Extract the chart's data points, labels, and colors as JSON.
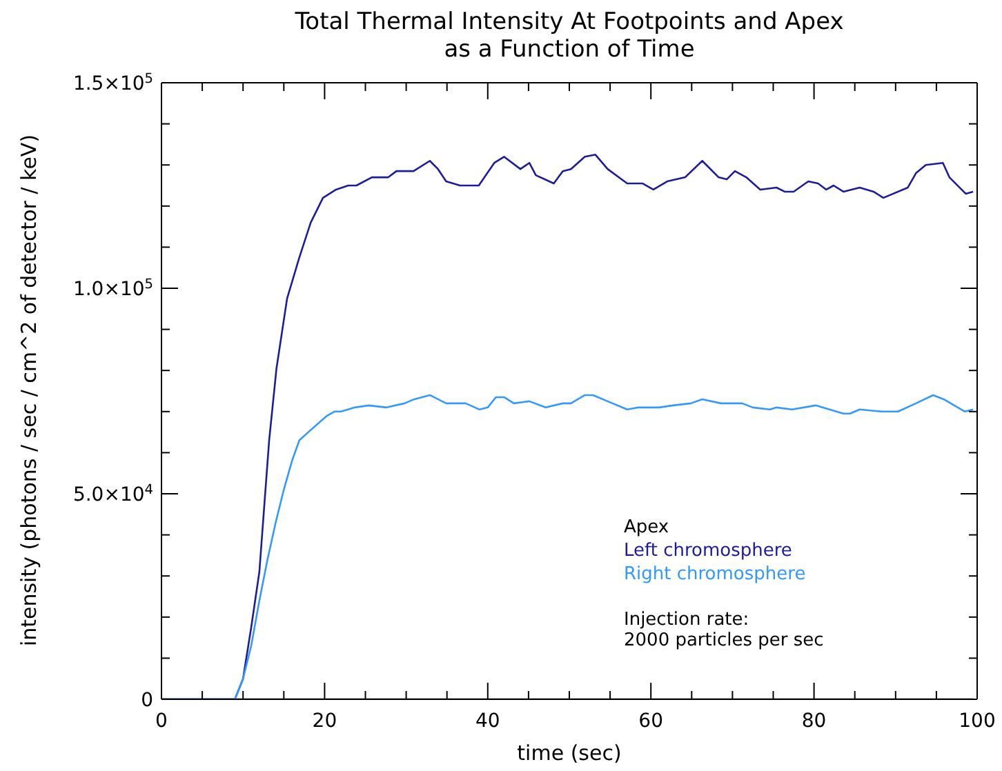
{
  "chart_data": {
    "type": "line",
    "title": "Total Thermal Intensity At Footpoints and Apex\nas a Function of Time",
    "xlabel": "time (sec)",
    "ylabel": "intensity (photons / sec / cm^2 of detector / keV)",
    "xlim": [
      0,
      100
    ],
    "xticks": [
      0,
      {
        "value": 5,
        "label": null
      },
      20,
      {
        "value": 25,
        "label": null
      },
      {
        "value": 10,
        "label": null
      },
      {
        "value": 15,
        "label": null
      },
      {
        "value": 30,
        "label": null
      },
      {
        "value": 35,
        "label": null
      },
      40,
      {
        "value": 45,
        "label": null
      },
      {
        "value": 50,
        "label": null
      },
      {
        "value": 55,
        "label": null
      },
      60,
      {
        "value": 65,
        "label": null
      },
      {
        "value": 70,
        "label": null
      },
      {
        "value": 75,
        "label": null
      },
      80,
      {
        "value": 85,
        "label": null
      },
      {
        "value": 90,
        "label": null
      },
      {
        "value": 95,
        "label": null
      },
      100
    ],
    "ylim": [
      0,
      150000
    ],
    "yticks": [
      0,
      {
        "value": 10000,
        "label": null
      },
      {
        "value": 20000,
        "label": null
      },
      {
        "value": 30000,
        "label": null
      },
      {
        "value": 40000,
        "label": null
      },
      {
        "value": 50000,
        "label": "5.0×10$^{4}$"
      },
      {
        "value": 60000,
        "label": null
      },
      {
        "value": 70000,
        "label": null
      },
      {
        "value": 80000,
        "label": null
      },
      {
        "value": 90000,
        "label": null
      },
      {
        "value": 100000,
        "label": "1.0×10$^{5}$"
      },
      {
        "value": 110000,
        "label": null
      },
      {
        "value": 120000,
        "label": null
      },
      {
        "value": 130000,
        "label": null
      },
      {
        "value": 140000,
        "label": null
      },
      {
        "value": 150000,
        "label": "1.5×10$^{5}$"
      }
    ],
    "legend": "bottom right",
    "marker": "none",
    "line_style": "solid",
    "annotations": [
      "Injection rate:\n2000 particles per sec"
    ],
    "series": [
      {
        "name": "Apex",
        "color": "#000000",
        "x": [
          0,
          99.5
        ],
        "values": [
          0,
          0
        ]
      },
      {
        "name": "Left chromosphere",
        "color": "#1c1c9c",
        "x": [
          0,
          9,
          10,
          11,
          12,
          13.2,
          14.1,
          15.4,
          16.9,
          18.3,
          19.8,
          21.4,
          22.9,
          23.9,
          25.8,
          27.8,
          28.8,
          30.9,
          32.9,
          33.9,
          34.9,
          36.6,
          38.9,
          40.8,
          42,
          44,
          45.1,
          45.9,
          48.1,
          49.2,
          50.2,
          51.9,
          53.2,
          54.7,
          57.1,
          59,
          60.3,
          62,
          64.2,
          66.3,
          68.3,
          69.3,
          70.3,
          71.7,
          73.4,
          75.4,
          76.4,
          77.5,
          79.3,
          80.5,
          81.5,
          82.4,
          83.6,
          85.6,
          87.3,
          88.5,
          91.5,
          92.5,
          93.7,
          95.8,
          96.6,
          98.6,
          99.5
        ],
        "values": [
          0,
          0,
          5000,
          17500,
          31000,
          63000,
          80500,
          97500,
          107500,
          116000,
          122000,
          124000,
          125000,
          125000,
          127000,
          127000,
          128500,
          128500,
          131000,
          129000,
          126000,
          125000,
          125000,
          130500,
          132000,
          129000,
          130500,
          127500,
          125500,
          128500,
          129000,
          132000,
          132500,
          129000,
          125500,
          125500,
          124000,
          126000,
          127000,
          131000,
          127000,
          126500,
          128500,
          127000,
          124000,
          124500,
          123500,
          123500,
          126000,
          125500,
          124000,
          125000,
          123500,
          124500,
          123500,
          122000,
          124500,
          128000,
          130000,
          130500,
          127000,
          123000,
          123500
        ]
      },
      {
        "name": "Right chromosphere",
        "color": "#3399ff",
        "x": [
          0,
          9,
          10,
          11,
          12,
          13,
          14,
          15,
          16,
          16.9,
          18,
          20.3,
          21.2,
          22,
          23.7,
          25.4,
          27.6,
          29.8,
          31,
          32.9,
          34.9,
          37.3,
          39,
          40,
          41,
          42,
          43.2,
          45.1,
          47.1,
          49.2,
          50.2,
          51.9,
          52.9,
          54.7,
          57.1,
          58.5,
          61,
          62.7,
          64.9,
          66.3,
          68.6,
          71.2,
          72.5,
          74.6,
          75.4,
          77.3,
          80.2,
          81.9,
          83.6,
          84.4,
          85.6,
          88.3,
          90.3,
          92.5,
          94.6,
          95.9,
          98.5,
          99.5
        ],
        "values": [
          0,
          0,
          5000,
          13000,
          24000,
          34000,
          43000,
          51000,
          58000,
          63000,
          65000,
          69000,
          70000,
          70000,
          71000,
          71500,
          71000,
          72000,
          73000,
          74000,
          72000,
          72000,
          70500,
          71000,
          73500,
          73500,
          72000,
          72500,
          71000,
          72000,
          72000,
          74000,
          74000,
          72500,
          70500,
          71000,
          71000,
          71500,
          72000,
          73000,
          72000,
          72000,
          71000,
          70500,
          71000,
          70500,
          71500,
          70500,
          69500,
          69500,
          70500,
          70000,
          70000,
          72000,
          74000,
          73000,
          70000,
          70500
        ]
      }
    ]
  }
}
